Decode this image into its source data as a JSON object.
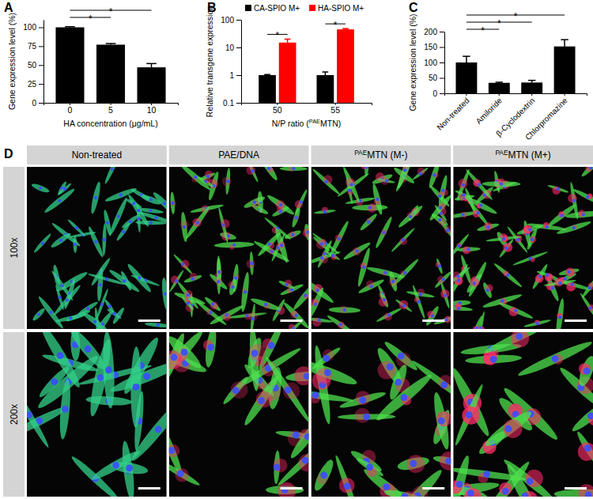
{
  "chart_data": [
    {
      "type": "bar",
      "title": "A",
      "categories": [
        "0",
        "5",
        "10"
      ],
      "values": [
        100,
        77,
        47
      ],
      "errors": [
        0.8,
        1.5,
        5
      ],
      "color": "#000000",
      "ylim": [
        0,
        110
      ],
      "yticks": [
        0,
        25,
        50,
        75,
        100
      ],
      "xlabel": "HA concentration (μg/mL)",
      "ylabel": "Gene expression level (%)",
      "annotations": [
        {
          "text": "*",
          "between": [
            "0",
            "5"
          ]
        },
        {
          "text": "*",
          "between": [
            "0",
            "10"
          ]
        }
      ]
    },
    {
      "type": "bar",
      "title": "B",
      "categories": [
        "50",
        "55"
      ],
      "series": [
        {
          "name": "CA-SPIO M+",
          "color": "#000000",
          "values": [
            1.0,
            1.0
          ],
          "errors": [
            0.05,
            0.3
          ]
        },
        {
          "name": "HA-SPIO M+",
          "color": "#ff0000",
          "values": [
            15,
            45
          ],
          "errors": [
            5,
            3
          ]
        }
      ],
      "log": "y",
      "ylim": [
        0.1,
        100
      ],
      "yticks": [
        0.1,
        1,
        10,
        100
      ],
      "legend": "top",
      "xlabel": "N/P ratio (PAEMTN)",
      "ylabel": "Relative transgene expression",
      "annotations": [
        {
          "text": "*",
          "category": "50"
        },
        {
          "text": "*",
          "category": "55"
        }
      ]
    },
    {
      "type": "bar",
      "title": "C",
      "categories": [
        "Non-treated",
        "Amiloride",
        "β-Cyclodextrin",
        "Chlorpromazine"
      ],
      "values": [
        100,
        34,
        35,
        152
      ],
      "errors": [
        20,
        2,
        7,
        22
      ],
      "color": "#000000",
      "ylim": [
        0,
        200
      ],
      "yticks": [
        0,
        50,
        100,
        150,
        200
      ],
      "ylabel": "Gene expression level (%)",
      "annotations": [
        {
          "text": "*",
          "between": [
            "Non-treated",
            "Amiloride"
          ]
        },
        {
          "text": "*",
          "between": [
            "Non-treated",
            "β-Cyclodextrin"
          ]
        },
        {
          "text": "*",
          "between": [
            "Non-treated",
            "Chlorpromazine"
          ]
        }
      ]
    }
  ],
  "superscript": "PAE",
  "image_panel": {
    "title": "D",
    "columns": [
      "Non-treated",
      "PAE/DNA",
      "PAEMTN (M-)",
      "PAEMTN (M+)"
    ],
    "rows": [
      "100x",
      "200x"
    ]
  }
}
